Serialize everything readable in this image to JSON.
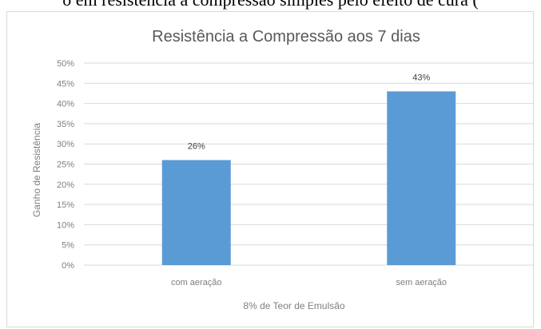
{
  "caption_fragment": "o em resistência a compressão simples pelo efeito de cura (",
  "chart_data": {
    "type": "bar",
    "title": "Resistência a Compressão aos 7 dias",
    "xlabel": "8% de Teor de Emulsão",
    "ylabel": "Ganho de Resistência",
    "categories": [
      "com aeração",
      "sem aeração"
    ],
    "values": [
      26,
      43
    ],
    "data_labels": [
      "26%",
      "43%"
    ],
    "ylim": [
      0,
      50
    ],
    "yticks": [
      "0%",
      "5%",
      "10%",
      "15%",
      "20%",
      "25%",
      "30%",
      "35%",
      "40%",
      "45%",
      "50%"
    ],
    "grid": true,
    "legend": "none",
    "bar_color": "#5b9bd5",
    "grid_color": "#d9d9d9"
  }
}
